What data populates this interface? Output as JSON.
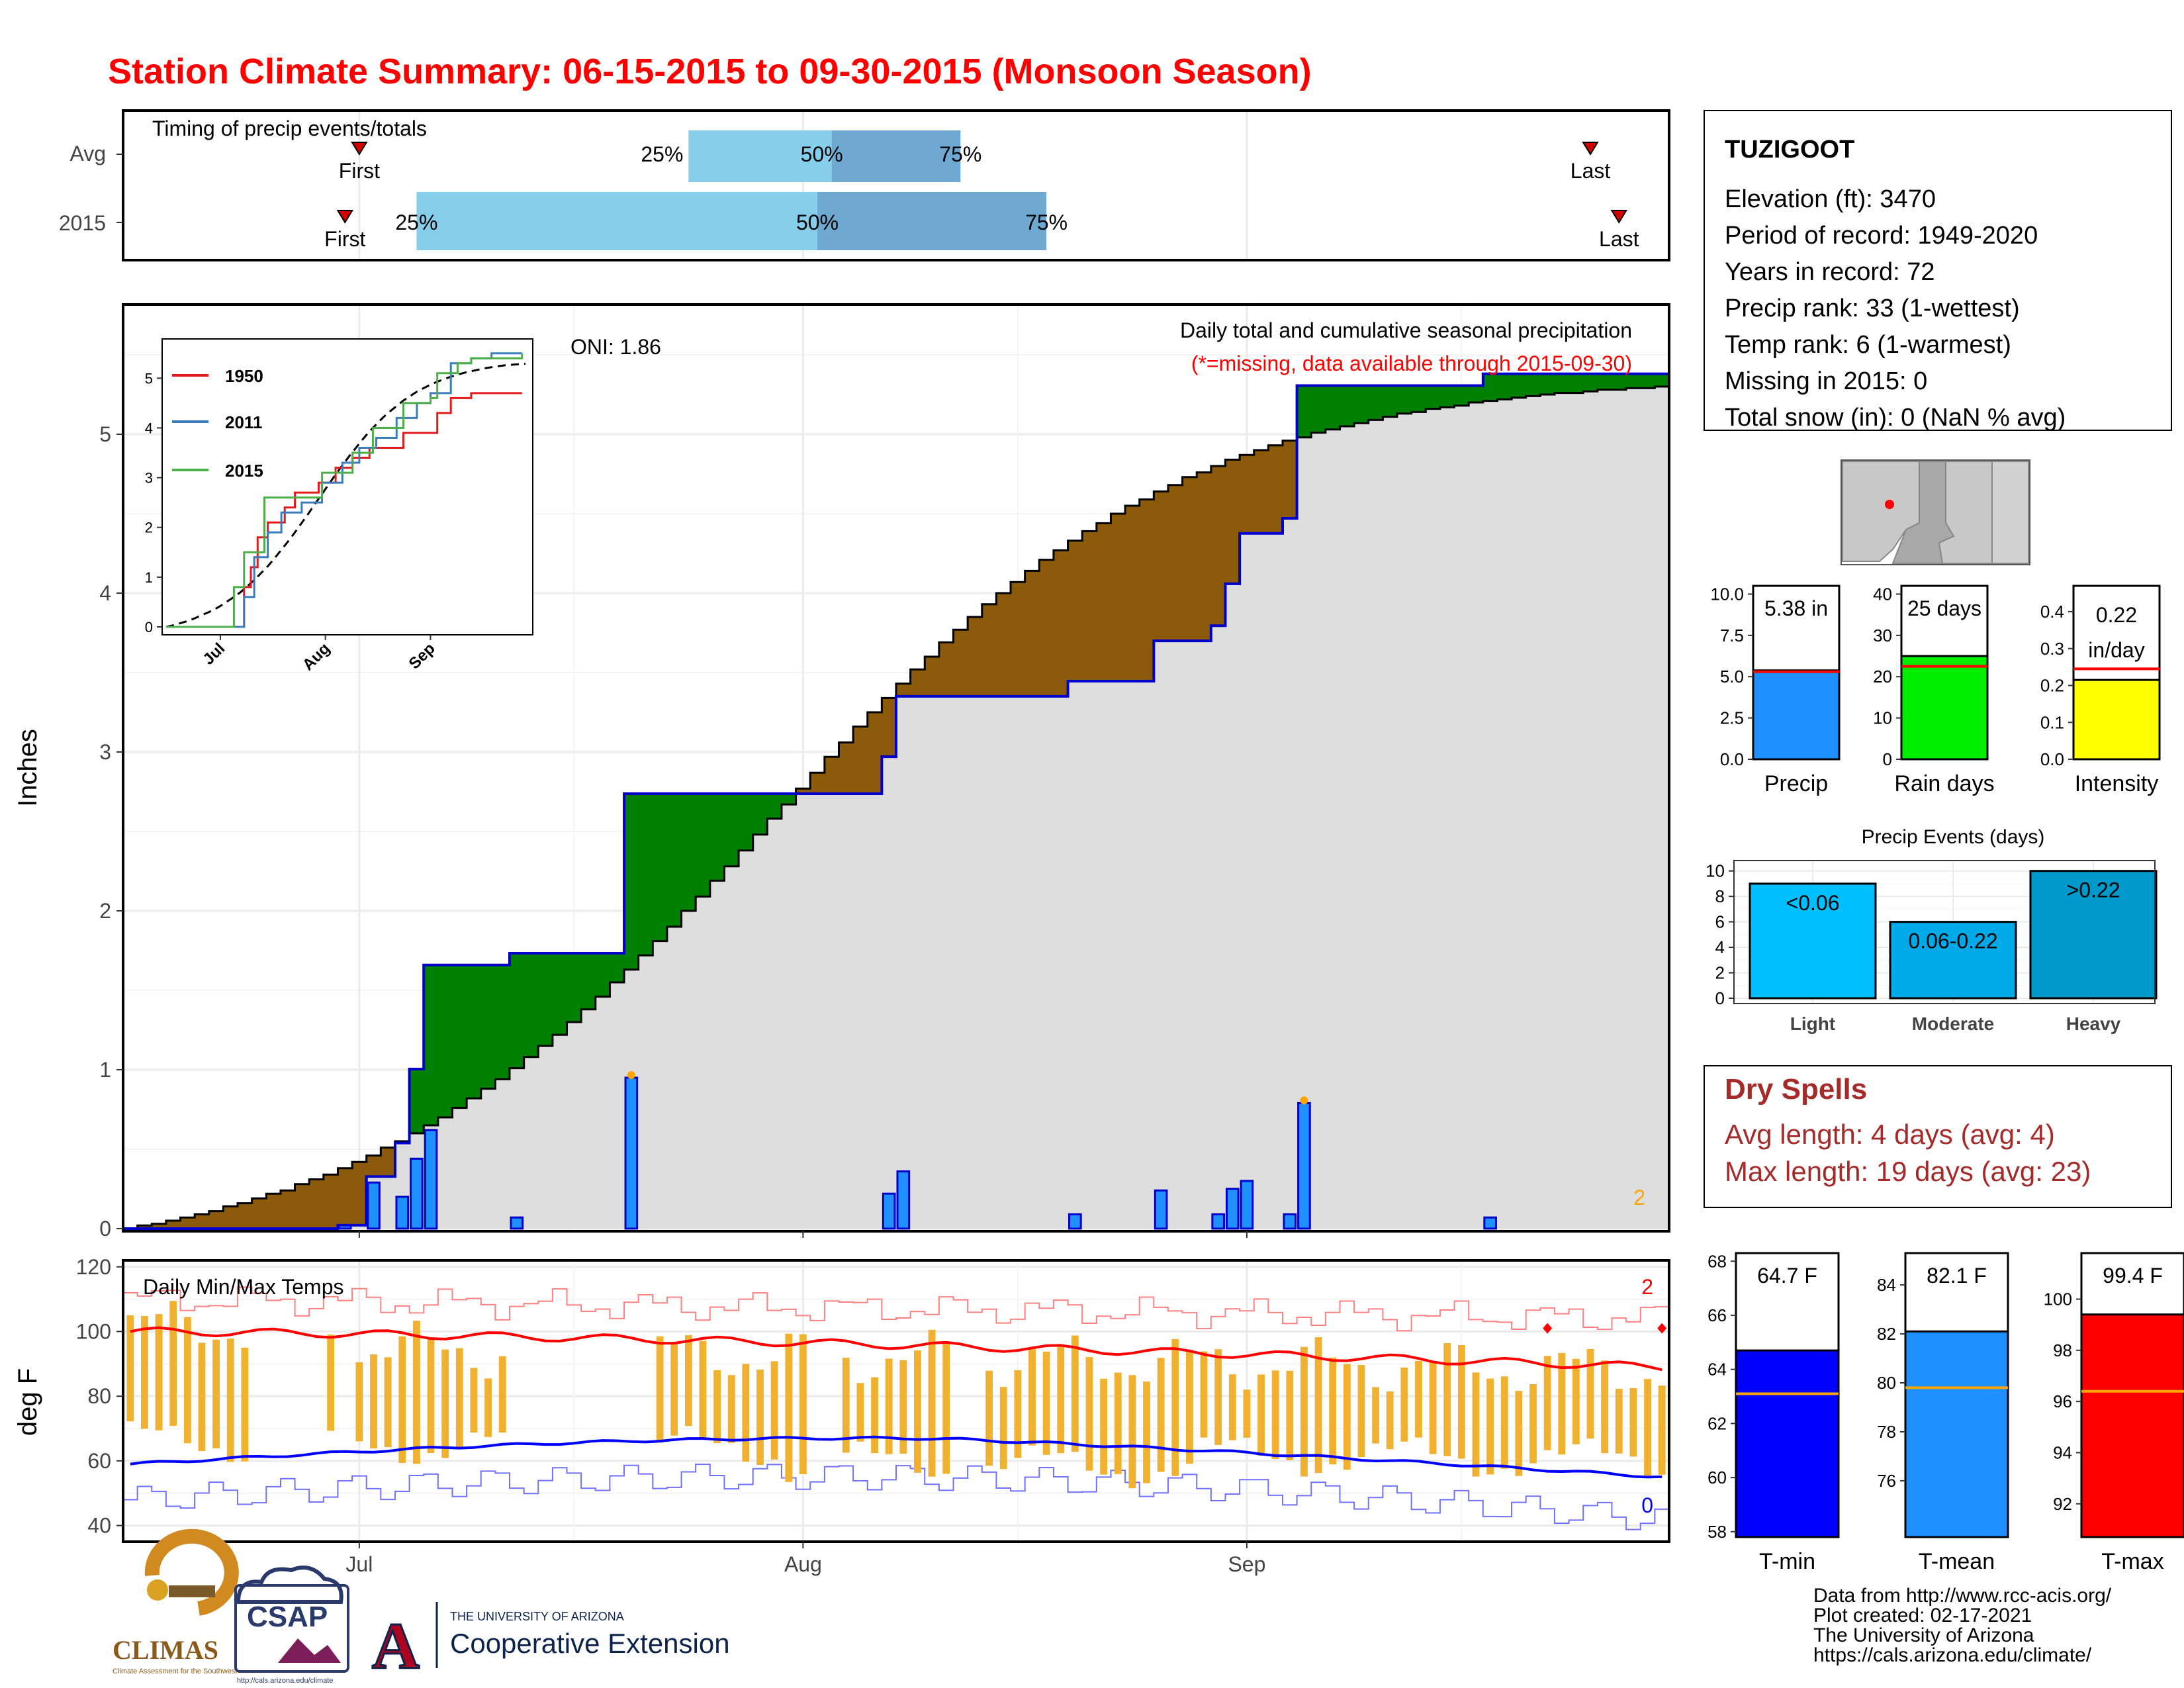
{
  "title": "Station Climate Summary: 06-15-2015 to 09-30-2015 (Monsoon Season)",
  "timing": {
    "label": "Timing of precip events/totals",
    "rows": [
      {
        "name": "Avg",
        "first": "First",
        "last": "Last",
        "q25": "25%",
        "q50": "50%",
        "q75": "75%",
        "first_date": "2015-07-01",
        "last_date": "2015-09-25",
        "q25_date": "2015-07-24",
        "q50_date": "2015-08-03",
        "q75_date": "2015-08-12"
      },
      {
        "name": "2015",
        "first": "First",
        "last": "Last",
        "q25": "25%",
        "q50": "50%",
        "q75": "75%",
        "first_date": "2015-06-30",
        "last_date": "2015-09-27",
        "q25_date": "2015-07-05",
        "q50_date": "2015-08-02",
        "q75_date": "2015-08-18"
      }
    ]
  },
  "station": {
    "name": "TUZIGOOT",
    "lines": [
      "Elevation (ft): 3470",
      "Period of record: 1949-2020",
      "Years in record: 72",
      "Precip rank: 33 (1-wettest)",
      "Temp rank: 6 (1-warmest)",
      "Missing in 2015: 0",
      "Total snow (in): 0 (NaN % avg)"
    ]
  },
  "precip_panel": {
    "ylabel": "Inches",
    "title": "Daily total and cumulative seasonal precipitation",
    "subtitle": "(*=missing, data available through 2015-09-30)",
    "oni": "ONI: 1.86",
    "count_label": "2",
    "yticks": [
      "0",
      "1",
      "2",
      "3",
      "4",
      "5"
    ]
  },
  "temp_panel": {
    "label": "Daily Min/Max Temps",
    "ylabel": "deg F",
    "yticks": [
      "40",
      "60",
      "80",
      "100",
      "120"
    ],
    "max_count": "2",
    "min_count": "0"
  },
  "x_axis": {
    "labels": [
      "Jul",
      "Aug",
      "Sep"
    ]
  },
  "inset": {
    "yticks": [
      "0",
      "1",
      "2",
      "3",
      "4",
      "5"
    ],
    "xticks": [
      "Jul",
      "Aug",
      "Sep"
    ],
    "legend": [
      {
        "name": "1950",
        "color": "#e31a1c"
      },
      {
        "name": "2011",
        "color": "#3a7dbd"
      },
      {
        "name": "2015",
        "color": "#4daf4a"
      }
    ]
  },
  "summary_bars": [
    {
      "label": "Precip",
      "value_label": "5.38 in",
      "value": 5.38,
      "avg": 5.3,
      "color": "#1e90ff",
      "ymax": 10.5,
      "yticks": [
        "0.0",
        "2.5",
        "5.0",
        "7.5",
        "10.0"
      ],
      "tickvals": [
        0,
        2.5,
        5,
        7.5,
        10
      ]
    },
    {
      "label": "Rain days",
      "value_label": "25 days",
      "value": 25,
      "avg": 22.5,
      "color": "#00ee00",
      "ymax": 42,
      "yticks": [
        "0",
        "10",
        "20",
        "30",
        "40"
      ],
      "tickvals": [
        0,
        10,
        20,
        30,
        40
      ]
    },
    {
      "label": "Intensity",
      "value_label": "0.22",
      "value_label2": "in/day",
      "value": 0.215,
      "avg": 0.245,
      "color": "#ffff00",
      "ymax": 0.47,
      "yticks": [
        "0.0",
        "0.1",
        "0.2",
        "0.3",
        "0.4"
      ],
      "tickvals": [
        0,
        0.1,
        0.2,
        0.3,
        0.4
      ]
    }
  ],
  "precip_events": {
    "title": "Precip Events (days)",
    "yticks": [
      "0",
      "2",
      "4",
      "6",
      "8",
      "10"
    ],
    "bars": [
      {
        "label": "Light",
        "range": "<0.06",
        "value": 9,
        "color": "#00bfff"
      },
      {
        "label": "Moderate",
        "range": "0.06-0.22",
        "value": 6,
        "color": "#00aae8"
      },
      {
        "label": "Heavy",
        "range": ">0.22",
        "value": 10,
        "color": "#0099cc"
      }
    ]
  },
  "dry_spells": {
    "title": "Dry Spells",
    "avg": "Avg length: 4 days (avg: 4)",
    "max": "Max length: 19 days (avg: 23)"
  },
  "temp_bars": [
    {
      "label": "T-min",
      "value_label": "64.7 F",
      "value": 64.7,
      "avg": 63.1,
      "color": "#0000ff",
      "ymin": 57.8,
      "ymax": 68.3,
      "yticks": [
        "58",
        "60",
        "62",
        "64",
        "66",
        "68"
      ],
      "tickvals": [
        58,
        60,
        62,
        64,
        66,
        68
      ]
    },
    {
      "label": "T-mean",
      "value_label": "82.1 F",
      "value": 82.1,
      "avg": 79.8,
      "color": "#1e90ff",
      "ymin": 73.7,
      "ymax": 85.3,
      "yticks": [
        "76",
        "78",
        "80",
        "82",
        "84"
      ],
      "tickvals": [
        76,
        78,
        80,
        82,
        84
      ]
    },
    {
      "label": "T-max",
      "value_label": "99.4 F",
      "value": 99.4,
      "avg": 96.4,
      "color": "#ff0000",
      "ymin": 90.7,
      "ymax": 101.8,
      "yticks": [
        "92",
        "94",
        "96",
        "98",
        "100"
      ],
      "tickvals": [
        92,
        94,
        96,
        98,
        100
      ]
    }
  ],
  "footer": {
    "lines": [
      "Data from http://www.rcc-acis.org/",
      "Plot created: 02-17-2021",
      "The University of Arizona",
      "https://cals.arizona.edu/climate/"
    ],
    "logos": {
      "climas": "CLIMAS",
      "climas_sub": "Climate Assessment for the Southwest",
      "csap": "CSAP",
      "csap_url": "http://cals.arizona.edu/climate",
      "ua_mark": "A",
      "ua_top": "THE UNIVERSITY OF ARIZONA",
      "ua_bottom": "Cooperative Extension"
    }
  },
  "chart_data": {
    "type": "area",
    "title": "Daily total and cumulative seasonal precipitation",
    "ylabel": "Inches",
    "ylim": [
      0,
      5.8
    ],
    "x_range": [
      "2015-06-15",
      "2015-09-30"
    ],
    "daily_precip": [
      {
        "date": "2015-06-30",
        "value": 0.02
      },
      {
        "date": "2015-07-02",
        "value": 0.29
      },
      {
        "date": "2015-07-04",
        "value": 0.2
      },
      {
        "date": "2015-07-05",
        "value": 0.44
      },
      {
        "date": "2015-07-06",
        "value": 0.62
      },
      {
        "date": "2015-07-12",
        "value": 0.07
      },
      {
        "date": "2015-07-20",
        "value": 0.95
      },
      {
        "date": "2015-08-07",
        "value": 0.22
      },
      {
        "date": "2015-08-08",
        "value": 0.36
      },
      {
        "date": "2015-08-20",
        "value": 0.09
      },
      {
        "date": "2015-08-26",
        "value": 0.24
      },
      {
        "date": "2015-08-30",
        "value": 0.09
      },
      {
        "date": "2015-08-31",
        "value": 0.25
      },
      {
        "date": "2015-09-01",
        "value": 0.3
      },
      {
        "date": "2015-09-04",
        "value": 0.09
      },
      {
        "date": "2015-09-05",
        "value": 0.79
      },
      {
        "date": "2015-09-18",
        "value": 0.07
      }
    ],
    "cumulative_2015_endpoint": 5.38,
    "cumulative_avg_endpoint": 5.3,
    "temps_ylim": [
      35,
      122
    ]
  }
}
